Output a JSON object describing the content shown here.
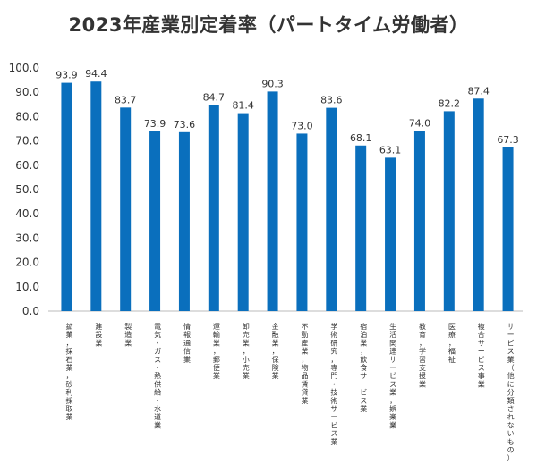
{
  "chart_data": {
    "type": "bar",
    "title": "2023年産業別定着率（パートタイム労働者）",
    "xlabel": "",
    "ylabel": "",
    "ylim": [
      0,
      100
    ],
    "yticks": [
      "0.0",
      "10.0",
      "20.0",
      "30.0",
      "40.0",
      "50.0",
      "60.0",
      "70.0",
      "80.0",
      "90.0",
      "100.0"
    ],
    "grid": false,
    "legend": "none",
    "bar_color": "#0a6fbd",
    "categories": [
      "鉱業，採石業，砂利採取業",
      "建設業",
      "製造業",
      "電気・ガス・熱供給・水道業",
      "情報通信業",
      "運輸業，郵便業",
      "卸売業，小売業",
      "金融業，保険業",
      "不動産業，物品賃貸業",
      "学術研究，専門・技術サービス業",
      "宿泊業，飲食サービス業",
      "生活関連サービス業，娯楽業",
      "教育，学習支援業",
      "医療，福祉",
      "複合サービス事業",
      "サービス業（他に分類されないもの）"
    ],
    "values": [
      93.9,
      94.4,
      83.7,
      73.9,
      73.6,
      84.7,
      81.4,
      90.3,
      73.0,
      83.6,
      68.1,
      63.1,
      74.0,
      82.2,
      87.4,
      67.3
    ],
    "value_labels": [
      "93.9",
      "94.4",
      "83.7",
      "73.9",
      "73.6",
      "84.7",
      "81.4",
      "90.3",
      "73.0",
      "83.6",
      "68.1",
      "63.1",
      "74.0",
      "82.2",
      "87.4",
      "67.3"
    ]
  }
}
